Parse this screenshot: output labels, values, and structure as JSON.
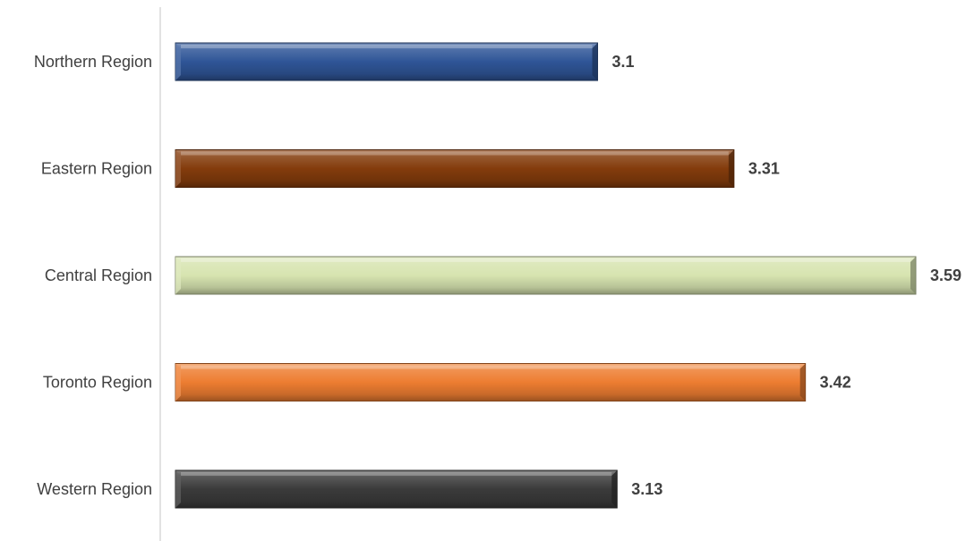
{
  "chart_data": {
    "type": "bar",
    "orientation": "horizontal",
    "categories": [
      "Northern Region",
      "Eastern Region",
      "Central Region",
      "Toronto Region",
      "Western Region"
    ],
    "values": [
      3.1,
      3.31,
      3.59,
      3.42,
      3.13
    ],
    "value_labels": [
      "3.1",
      "3.31",
      "3.59",
      "3.42",
      "3.13"
    ],
    "colors": [
      "#2f5597",
      "#843c0c",
      "#d7e4b0",
      "#ed7d31",
      "#3b3b3b"
    ],
    "xlim": [
      2.45,
      3.59
    ],
    "grid": false,
    "legend": "none",
    "title": "",
    "xlabel": "",
    "ylabel": ""
  }
}
